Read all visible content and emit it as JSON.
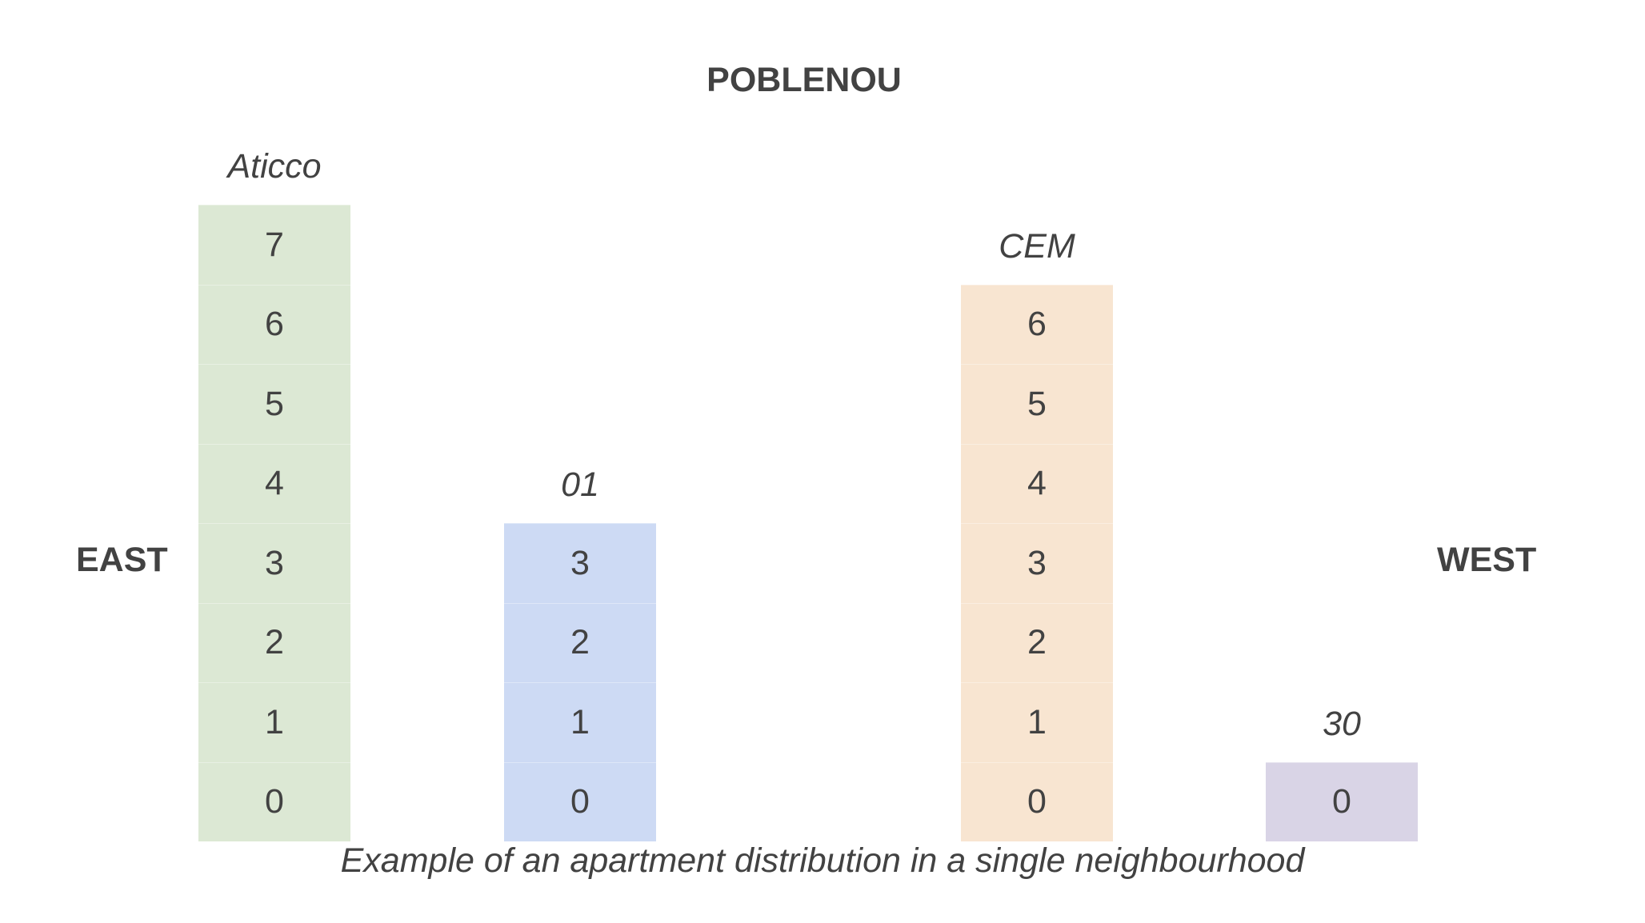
{
  "title": "POBLENOU",
  "sides": {
    "left": "EAST",
    "right": "WEST"
  },
  "caption": "Example of an apartment distribution in a single neighbourhood",
  "buildings": [
    {
      "name": "Aticco",
      "floors": [
        "0",
        "1",
        "2",
        "3",
        "4",
        "5",
        "6",
        "7"
      ],
      "color": "#dce8d4"
    },
    {
      "name": "01",
      "floors": [
        "0",
        "1",
        "2",
        "3"
      ],
      "color": "#cddaf4"
    },
    {
      "name": "CEM",
      "floors": [
        "0",
        "1",
        "2",
        "3",
        "4",
        "5",
        "6"
      ],
      "color": "#f8e5d1"
    },
    {
      "name": "30",
      "floors": [
        "0"
      ],
      "color": "#d9d4e6"
    }
  ]
}
